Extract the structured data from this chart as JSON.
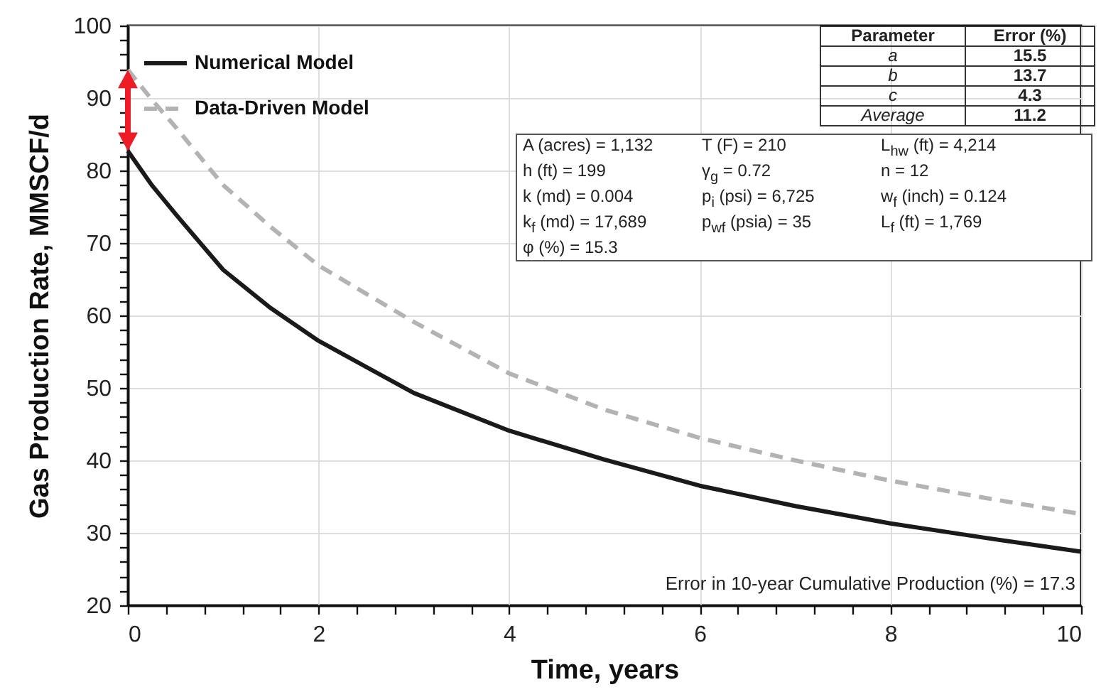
{
  "chart_data": {
    "type": "line",
    "xlabel": "Time, years",
    "ylabel": "Gas Production Rate, MMSCF/d",
    "x": [
      0,
      0.25,
      0.5,
      1,
      1.5,
      2,
      3,
      4,
      5,
      6,
      7,
      8,
      9,
      10
    ],
    "series": [
      {
        "name": "Numerical Model",
        "color": "#1a1a1a",
        "line_style": "solid",
        "values": [
          82.7,
          78,
          74,
          66.3,
          61,
          56.5,
          49.3,
          44.1,
          40.1,
          36.5,
          33.7,
          31.3,
          29.3,
          27.4
        ]
      },
      {
        "name": "Data-Driven Model",
        "color": "#b3b3b3",
        "line_style": "dashed",
        "values": [
          93.9,
          89.8,
          86,
          78,
          72.2,
          66.9,
          59.1,
          52,
          47,
          43.1,
          40,
          37.2,
          34.8,
          32.6
        ]
      }
    ],
    "xlim": [
      0,
      10
    ],
    "ylim": [
      20,
      100
    ],
    "xticks": [
      0,
      {
        "value": 0.4,
        "label": null
      },
      {
        "value": 0.8,
        "label": null
      },
      {
        "value": 1.2,
        "label": null
      },
      {
        "value": 1.6,
        "label": null
      },
      2,
      {
        "value": 2.4,
        "label": null
      },
      {
        "value": 2.8,
        "label": null
      },
      {
        "value": 3.2,
        "label": null
      },
      {
        "value": 3.6,
        "label": null
      },
      4,
      {
        "value": 4.4,
        "label": null
      },
      {
        "value": 4.8,
        "label": null
      },
      {
        "value": 5.2,
        "label": null
      },
      {
        "value": 5.6,
        "label": null
      },
      6,
      {
        "value": 6.4,
        "label": null
      },
      {
        "value": 6.8,
        "label": null
      },
      {
        "value": 7.2,
        "label": null
      },
      {
        "value": 7.6,
        "label": null
      },
      8,
      {
        "value": 8.4,
        "label": null
      },
      {
        "value": 8.8,
        "label": null
      },
      {
        "value": 9.2,
        "label": null
      },
      {
        "value": 9.6,
        "label": null
      },
      10
    ],
    "yticks": [
      20,
      {
        "value": 22,
        "label": null
      },
      {
        "value": 24,
        "label": null
      },
      {
        "value": 26,
        "label": null
      },
      {
        "value": 28,
        "label": null
      },
      30,
      {
        "value": 32,
        "label": null
      },
      {
        "value": 34,
        "label": null
      },
      {
        "value": 36,
        "label": null
      },
      {
        "value": 38,
        "label": null
      },
      40,
      {
        "value": 42,
        "label": null
      },
      {
        "value": 44,
        "label": null
      },
      {
        "value": 46,
        "label": null
      },
      {
        "value": 48,
        "label": null
      },
      50,
      {
        "value": 52,
        "label": null
      },
      {
        "value": 54,
        "label": null
      },
      {
        "value": 56,
        "label": null
      },
      {
        "value": 58,
        "label": null
      },
      60,
      {
        "value": 62,
        "label": null
      },
      {
        "value": 64,
        "label": null
      },
      {
        "value": 66,
        "label": null
      },
      {
        "value": 68,
        "label": null
      },
      70,
      {
        "value": 72,
        "label": null
      },
      {
        "value": 74,
        "label": null
      },
      {
        "value": 76,
        "label": null
      },
      {
        "value": 78,
        "label": null
      },
      80,
      {
        "value": 82,
        "label": null
      },
      {
        "value": 84,
        "label": null
      },
      {
        "value": 86,
        "label": null
      },
      {
        "value": 88,
        "label": null
      },
      90,
      {
        "value": 92,
        "label": null
      },
      {
        "value": 94,
        "label": null
      },
      {
        "value": 96,
        "label": null
      },
      {
        "value": 98,
        "label": null
      },
      100
    ],
    "grid": true,
    "legend": "top left",
    "marker": "none",
    "annotations": [
      "Parameter",
      "Error (%)",
      "a",
      "15.5",
      "b",
      "13.7",
      "c",
      "4.3",
      "Average",
      "11.2",
      "A (acres) = 1,132",
      "T (F) = 210",
      "L$_{hw}$ (ft) = 4,214",
      "h (ft) = 199",
      "γ$_{g}$ = 0.72",
      "n = 12",
      "k (md) = 0.004",
      "p$_{i}$ (psi) = 6,725",
      "w$_{f}$ (inch) = 0.124",
      "k$_{f}$ (md) = 17,689",
      "p$_{wf}$ (psia) = 35",
      "L$_{f}$ (ft) = 1,769",
      "φ (%) = 15.3",
      "Error in 10-year Cumulative Production (%) = 17.3"
    ]
  }
}
